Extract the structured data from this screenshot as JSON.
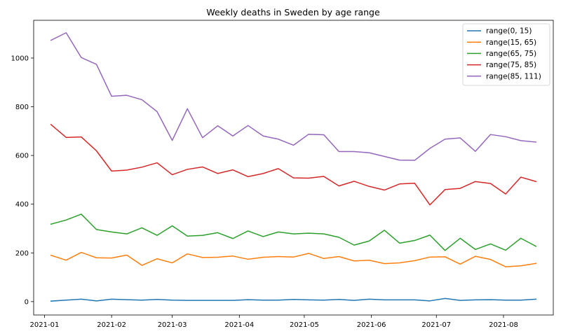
{
  "chart_data": {
    "type": "line",
    "title": "Weekly deaths in Sweden by age range",
    "xlabel": "",
    "ylabel": "",
    "x": [
      "2021-01-04",
      "2021-01-11",
      "2021-01-18",
      "2021-01-25",
      "2021-02-01",
      "2021-02-08",
      "2021-02-15",
      "2021-02-22",
      "2021-03-01",
      "2021-03-08",
      "2021-03-15",
      "2021-03-22",
      "2021-03-29",
      "2021-04-05",
      "2021-04-12",
      "2021-04-19",
      "2021-04-26",
      "2021-05-03",
      "2021-05-10",
      "2021-05-17",
      "2021-05-24",
      "2021-05-31",
      "2021-06-07",
      "2021-06-14",
      "2021-06-21",
      "2021-06-28",
      "2021-07-05",
      "2021-07-12",
      "2021-07-19",
      "2021-07-26",
      "2021-08-02",
      "2021-08-09",
      "2021-08-16"
    ],
    "xlim": [
      "2020-12-27",
      "2021-08-24"
    ],
    "xticks": [
      "2021-01",
      "2021-02",
      "2021-03",
      "2021-04",
      "2021-05",
      "2021-06",
      "2021-07",
      "2021-08"
    ],
    "xtick_dates": [
      "2021-01-01",
      "2021-02-01",
      "2021-03-01",
      "2021-04-01",
      "2021-05-01",
      "2021-06-01",
      "2021-07-01",
      "2021-08-01"
    ],
    "ylim": [
      -55,
      1155
    ],
    "yticks": [
      0,
      200,
      400,
      600,
      800,
      1000
    ],
    "grid": false,
    "legend_position": "top-right",
    "series": [
      {
        "name": "range(0, 15)",
        "color": "#1f77b4",
        "values": [
          2,
          6,
          10,
          3,
          10,
          8,
          6,
          9,
          6,
          5,
          5,
          5,
          5,
          8,
          6,
          6,
          9,
          7,
          6,
          9,
          5,
          10,
          7,
          7,
          7,
          3,
          13,
          5,
          7,
          8,
          6,
          6,
          10
        ]
      },
      {
        "name": "range(15, 65)",
        "color": "#ff7f0e",
        "values": [
          190,
          170,
          202,
          180,
          179,
          191,
          149,
          176,
          159,
          196,
          181,
          182,
          187,
          174,
          182,
          185,
          183,
          198,
          177,
          185,
          167,
          170,
          156,
          159,
          168,
          183,
          184,
          154,
          186,
          173,
          143,
          147,
          157
        ]
      },
      {
        "name": "range(65, 75)",
        "color": "#2ca02c",
        "values": [
          318,
          335,
          359,
          296,
          286,
          278,
          303,
          272,
          311,
          269,
          272,
          283,
          259,
          290,
          267,
          286,
          278,
          281,
          278,
          264,
          232,
          249,
          293,
          240,
          251,
          273,
          210,
          260,
          214,
          237,
          211,
          260,
          227
        ]
      },
      {
        "name": "range(75, 85)",
        "color": "#d62728",
        "values": [
          727,
          674,
          676,
          619,
          536,
          540,
          552,
          570,
          521,
          543,
          553,
          526,
          541,
          513,
          526,
          546,
          508,
          507,
          514,
          475,
          494,
          473,
          458,
          483,
          486,
          397,
          460,
          465,
          493,
          485,
          442,
          511,
          493
        ]
      },
      {
        "name": "range(85, 111)",
        "color": "#9467bd",
        "values": [
          1073,
          1104,
          1002,
          974,
          843,
          847,
          829,
          780,
          662,
          792,
          673,
          722,
          680,
          723,
          680,
          667,
          642,
          687,
          685,
          616,
          616,
          611,
          596,
          581,
          580,
          629,
          667,
          672,
          617,
          686,
          677,
          661,
          655
        ]
      }
    ]
  }
}
